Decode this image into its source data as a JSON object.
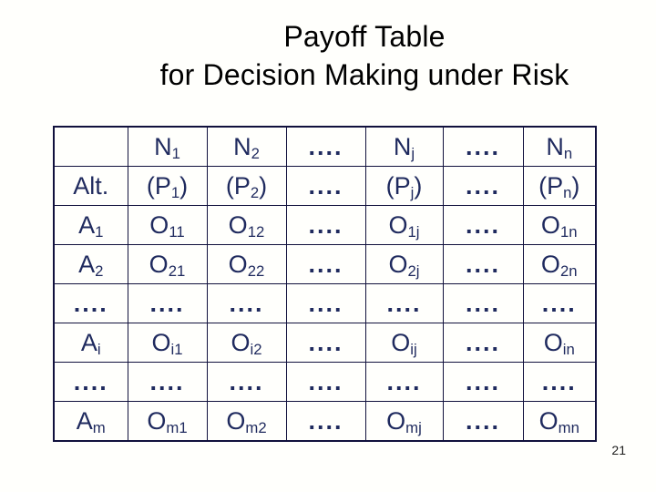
{
  "slide": {
    "background": "#fffffc",
    "page_number": "21"
  },
  "title": {
    "lines": [
      "Payoff Table",
      "for Decision Making under Risk"
    ],
    "color": "#000000"
  },
  "table": {
    "text_color": "#1f2a5e",
    "border_color": "#11113d",
    "column_count": 7,
    "rows": [
      [
        "",
        "N_{1}",
        "N_{2}",
        "....",
        "N_{j}",
        "....",
        "N_{n}"
      ],
      [
        "Alt.",
        "(P_{1})",
        "(P_{2})",
        "....",
        "(P_{j})",
        "....",
        "(P_{n})"
      ],
      [
        "A_{1}",
        "O_{11}",
        "O_{12}",
        "....",
        "O_{1j}",
        "....",
        "O_{1n}"
      ],
      [
        "A_{2}",
        "O_{21}",
        "O_{22}",
        "....",
        "O_{2j}",
        "....",
        "O_{2n}"
      ],
      [
        "....",
        "....",
        "....",
        "....",
        "....",
        "....",
        "...."
      ],
      [
        "A_{i}",
        "O_{i1}",
        "O_{i2}",
        "....",
        "O_{ij}",
        "....",
        "O_{in}"
      ],
      [
        "....",
        "....",
        "....",
        "....",
        "....",
        "....",
        "...."
      ],
      [
        "A_{m}",
        "O_{m1}",
        "O_{m2}",
        "....",
        "O_{mj}",
        "....",
        "O_{mn}"
      ]
    ]
  }
}
